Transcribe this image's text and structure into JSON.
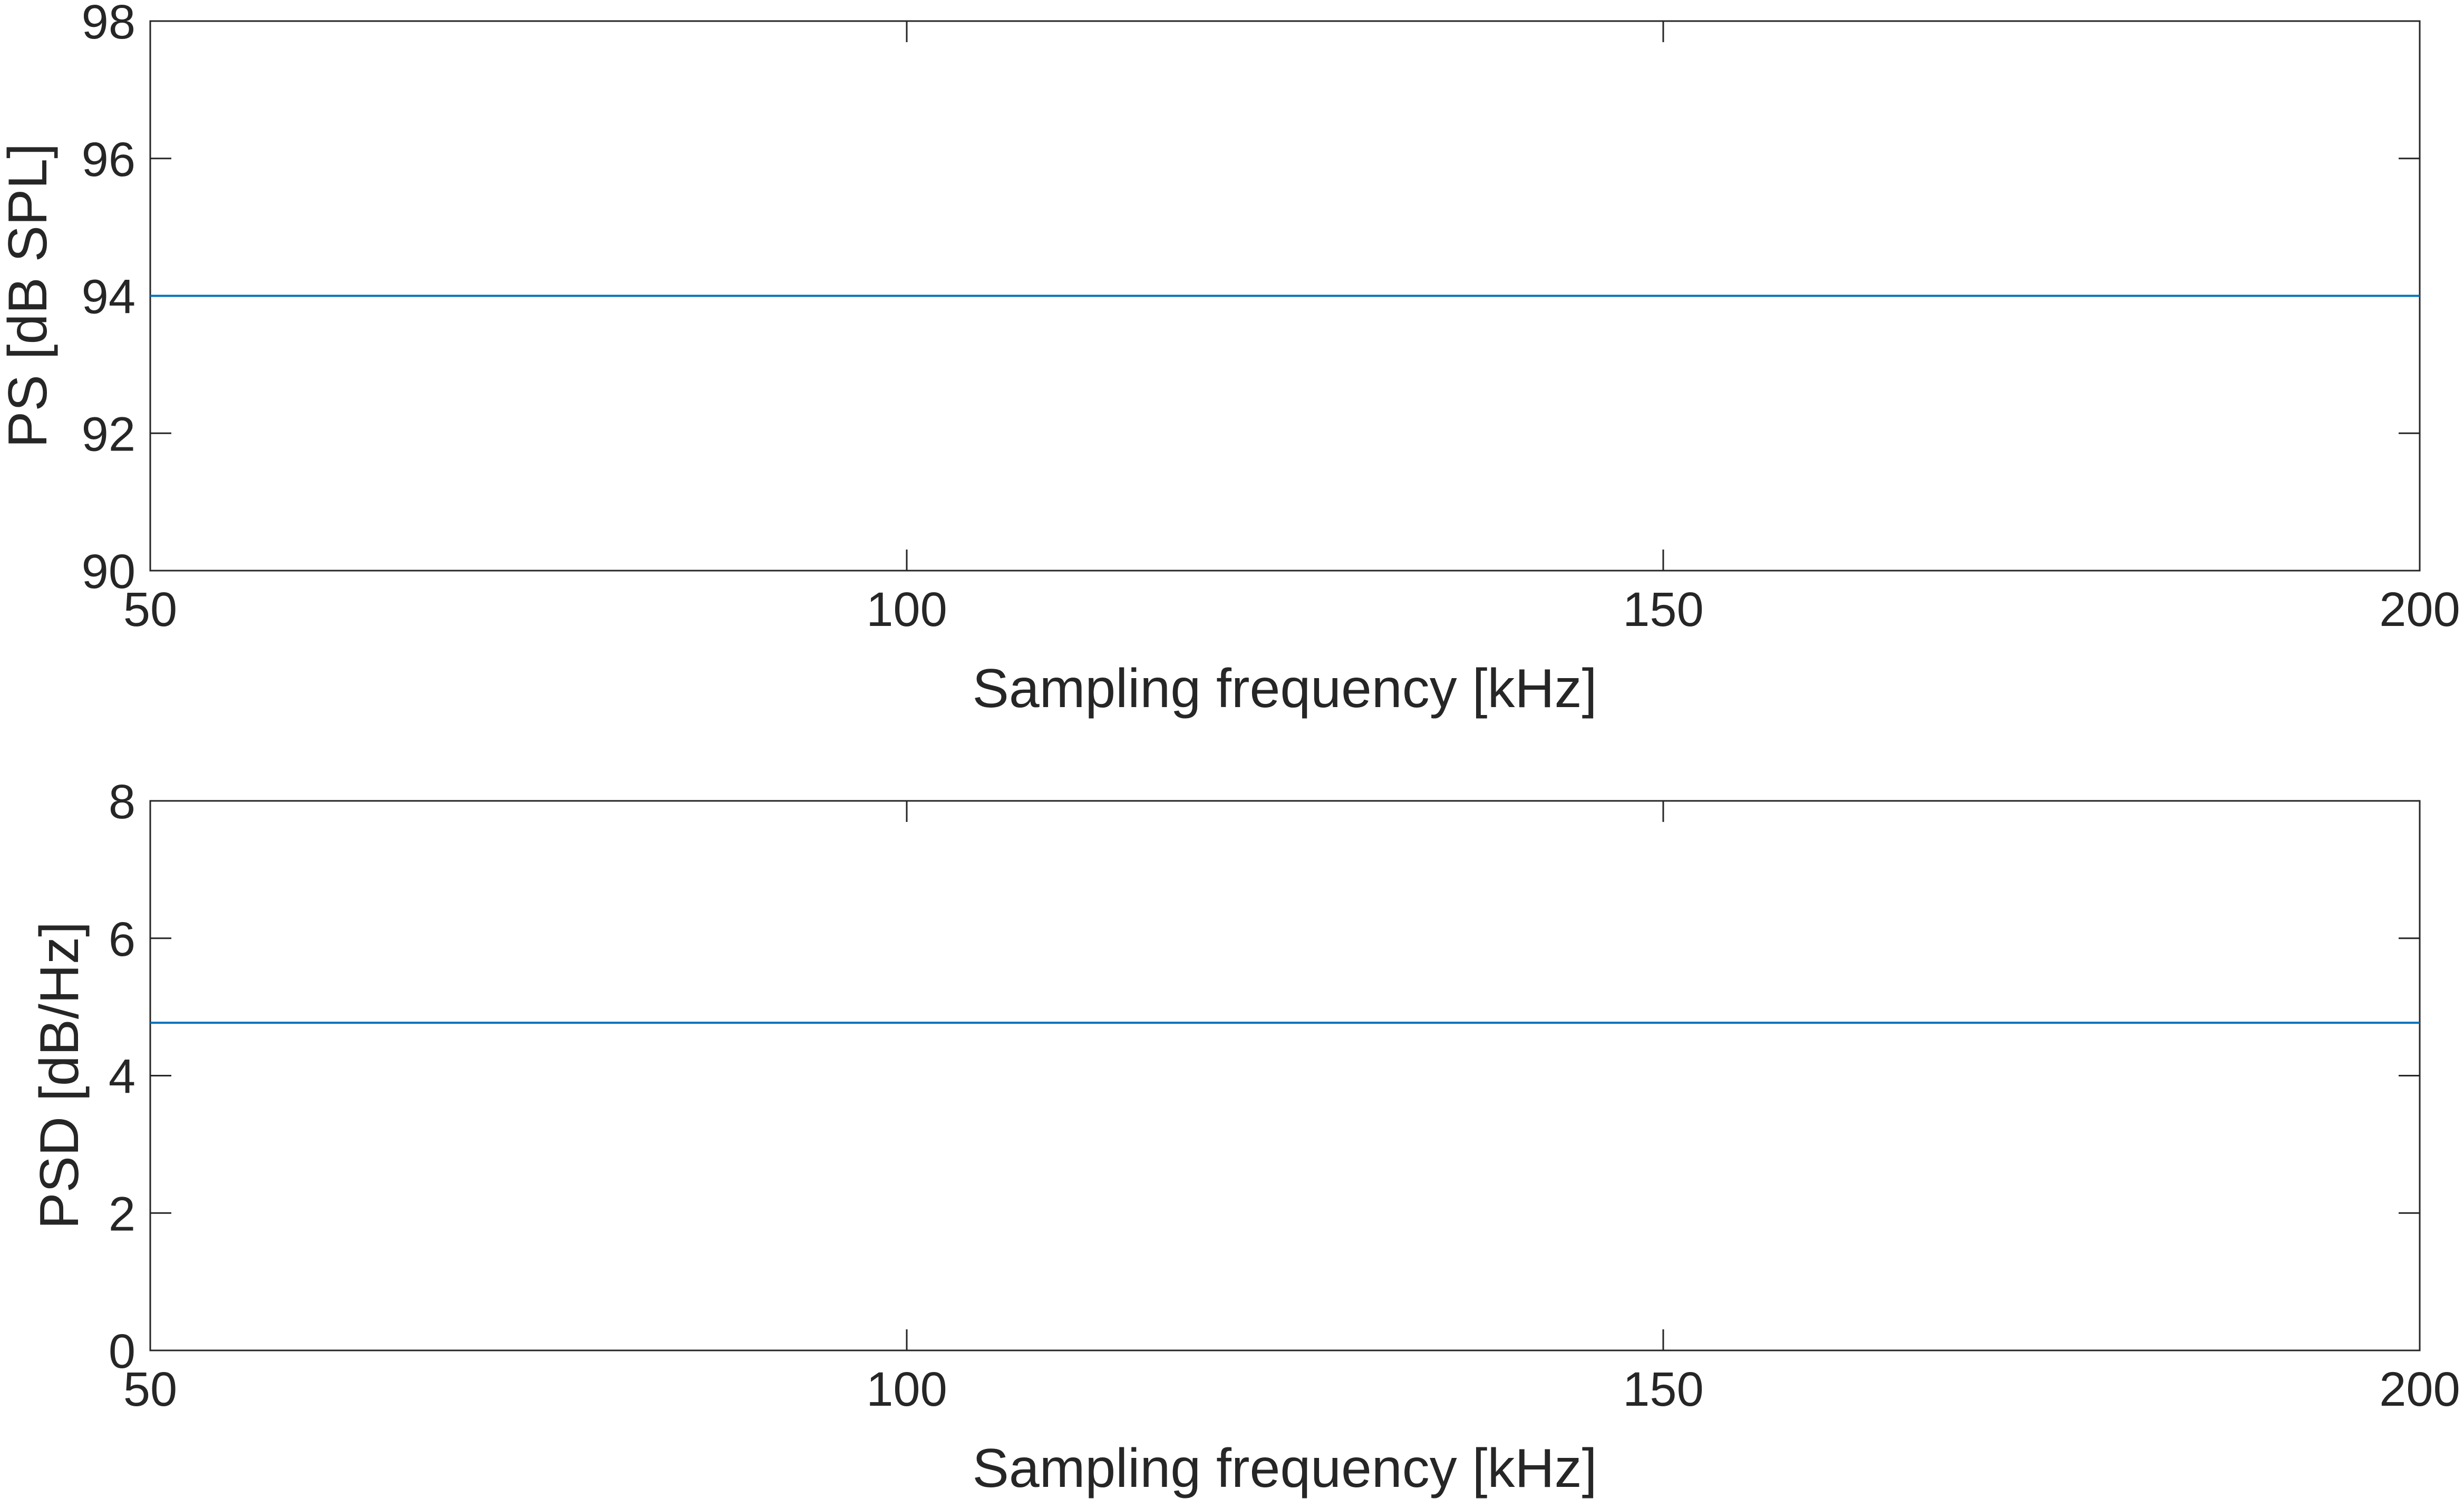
{
  "chart_data": [
    {
      "type": "line",
      "xlabel": "Sampling frequency [kHz]",
      "ylabel": "PS [dB SPL]",
      "xlim": [
        50,
        200
      ],
      "ylim": [
        90,
        98
      ],
      "xticks": [
        "50",
        "100",
        "150",
        "200"
      ],
      "yticks": [
        "90",
        "92",
        "94",
        "96",
        "98"
      ],
      "grid": false,
      "legend": "none",
      "color": "#0072BD",
      "series": [
        {
          "x": [
            50,
            75,
            100,
            125,
            150,
            175,
            200
          ],
          "y": [
            94,
            94,
            94,
            94,
            94,
            94,
            94
          ]
        }
      ]
    },
    {
      "type": "line",
      "xlabel": "Sampling frequency [kHz]",
      "ylabel": "PSD [dB/Hz]",
      "xlim": [
        50,
        200
      ],
      "ylim": [
        0,
        8
      ],
      "xticks": [
        "50",
        "100",
        "150",
        "200"
      ],
      "yticks": [
        "0",
        "2",
        "4",
        "6",
        "8"
      ],
      "grid": false,
      "legend": "none",
      "color": "#0072BD",
      "series": [
        {
          "x": [
            50,
            75,
            100,
            125,
            150,
            175,
            200
          ],
          "y": [
            4.77,
            4.77,
            4.77,
            4.77,
            4.77,
            4.77,
            4.77
          ]
        }
      ]
    }
  ]
}
